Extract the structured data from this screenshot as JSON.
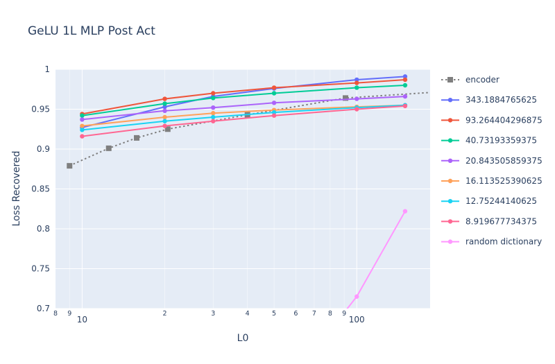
{
  "chart_data": {
    "type": "line",
    "title": "GeLU 1L MLP Post Act",
    "xlabel": "L0",
    "ylabel": "Loss Recovered",
    "xscale": "log",
    "xlim": [
      8,
      185
    ],
    "ylim": [
      0.7,
      1.0
    ],
    "grid": true,
    "legend": "right",
    "y_ticks": [
      "0.7",
      "0.75",
      "0.8",
      "0.85",
      "0.9",
      "0.95",
      "1"
    ],
    "x_major_ticks": [
      {
        "value": 10,
        "label": "10"
      },
      {
        "value": 100,
        "label": "100"
      }
    ],
    "x_minor_ticks": [
      {
        "value": 8,
        "label": "8"
      },
      {
        "value": 9,
        "label": "9"
      },
      {
        "value": 20,
        "label": "2"
      },
      {
        "value": 30,
        "label": "3"
      },
      {
        "value": 40,
        "label": "4"
      },
      {
        "value": 50,
        "label": "5"
      },
      {
        "value": 60,
        "label": "6"
      },
      {
        "value": 70,
        "label": "7"
      },
      {
        "value": 80,
        "label": "8"
      },
      {
        "value": 90,
        "label": "9"
      }
    ],
    "series": [
      {
        "name": "encoder",
        "color": "#7f7f7f",
        "dash": "dot",
        "marker": "square",
        "x": [
          9,
          12.5,
          15.8,
          20.5,
          40,
          91,
          185
        ],
        "y": [
          0.879,
          0.901,
          0.914,
          0.925,
          0.943,
          0.964,
          0.971
        ],
        "markers": [
          true,
          true,
          true,
          true,
          true,
          true,
          false
        ]
      },
      {
        "name": "343.1884765625",
        "color": "#636efa",
        "marker": "circle",
        "x": [
          10,
          20,
          30,
          50,
          100,
          150
        ],
        "y": [
          0.927,
          0.953,
          0.966,
          0.976,
          0.987,
          0.991
        ]
      },
      {
        "name": "93.264404296875",
        "color": "#ef553b",
        "marker": "circle",
        "x": [
          10,
          20,
          30,
          50,
          100,
          150
        ],
        "y": [
          0.944,
          0.963,
          0.97,
          0.977,
          0.983,
          0.987
        ]
      },
      {
        "name": "40.73193359375",
        "color": "#00cc96",
        "marker": "circle",
        "x": [
          10,
          20,
          30,
          50,
          100,
          150
        ],
        "y": [
          0.942,
          0.957,
          0.964,
          0.97,
          0.977,
          0.98
        ]
      },
      {
        "name": "20.843505859375",
        "color": "#ab63fa",
        "marker": "circle",
        "x": [
          10,
          20,
          30,
          50,
          100,
          150
        ],
        "y": [
          0.937,
          0.948,
          0.952,
          0.958,
          0.963,
          0.966
        ]
      },
      {
        "name": "16.113525390625",
        "color": "#ffa15a",
        "marker": "circle",
        "x": [
          10,
          20,
          30,
          50,
          100,
          150
        ],
        "y": [
          0.929,
          0.94,
          0.945,
          0.949,
          0.953,
          0.955
        ]
      },
      {
        "name": "12.75244140625",
        "color": "#19d3f3",
        "marker": "circle",
        "x": [
          10,
          20,
          30,
          50,
          100,
          150
        ],
        "y": [
          0.924,
          0.935,
          0.94,
          0.946,
          0.952,
          0.955
        ]
      },
      {
        "name": "8.919677734375",
        "color": "#ff6692",
        "marker": "circle",
        "x": [
          10,
          20,
          30,
          50,
          100,
          150
        ],
        "y": [
          0.916,
          0.929,
          0.935,
          0.942,
          0.95,
          0.954
        ]
      },
      {
        "name": "random dictionary",
        "color": "#ff97ff",
        "marker": "circle",
        "x": [
          90,
          100,
          150
        ],
        "y": [
          0.695,
          0.715,
          0.822
        ],
        "markers": [
          false,
          true,
          true
        ]
      }
    ]
  }
}
